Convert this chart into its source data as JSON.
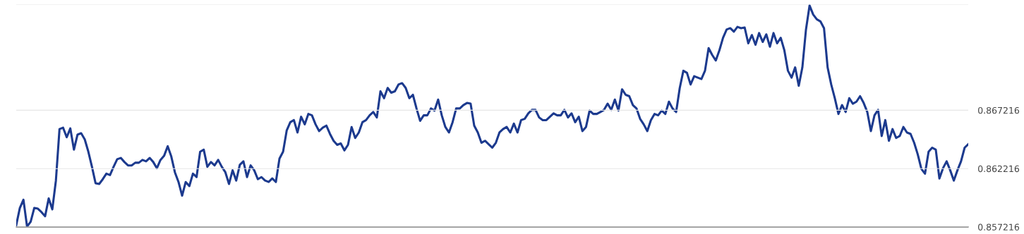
{
  "chart_data": {
    "type": "line",
    "categories": [
      null,
      null,
      null,
      null,
      null,
      null,
      null,
      null,
      null,
      null,
      null,
      null,
      null,
      null,
      null,
      null,
      null,
      null,
      null,
      null,
      null,
      null,
      null,
      null,
      null,
      null,
      null,
      null,
      null,
      null,
      null,
      null,
      null,
      null,
      null,
      null,
      null,
      null,
      null,
      null,
      null,
      null,
      null,
      null,
      null,
      null,
      null,
      null,
      null,
      null,
      null,
      null,
      null,
      null,
      null,
      null,
      null,
      null,
      null,
      null,
      null,
      null,
      null,
      null,
      null,
      null,
      null,
      null,
      null,
      null,
      null,
      null,
      null,
      null,
      null,
      null,
      null,
      null,
      null,
      null,
      null,
      null,
      null,
      null,
      null,
      null,
      null,
      null,
      null,
      null,
      null,
      null,
      null,
      null,
      null,
      null,
      null,
      null,
      null,
      null,
      null,
      null,
      null,
      null,
      null,
      null,
      null,
      null,
      null,
      null,
      null,
      null,
      null,
      null,
      null,
      null,
      null,
      null,
      null,
      null,
      null,
      null,
      null,
      null,
      null,
      null,
      null,
      null,
      null,
      null,
      null,
      null,
      null,
      null,
      null,
      null,
      null,
      null,
      null,
      null,
      null,
      null,
      null,
      null,
      null,
      null,
      null,
      null,
      null,
      null,
      null,
      null,
      null,
      null,
      null,
      null,
      null,
      null,
      null,
      null,
      null,
      null,
      null,
      null,
      null,
      null,
      null,
      null,
      null,
      null,
      null,
      null,
      null,
      null,
      null,
      null,
      null,
      null,
      null,
      null,
      null,
      null,
      null,
      null,
      null,
      null,
      null,
      null,
      null,
      null,
      null,
      null,
      null,
      null,
      null,
      null,
      null,
      null,
      null,
      null,
      null,
      null,
      null,
      null,
      null,
      null,
      null,
      null,
      null,
      null,
      null,
      null,
      null,
      null,
      null,
      null,
      null,
      null,
      null,
      null,
      null,
      null,
      null,
      null,
      null,
      null,
      null,
      null,
      null,
      null,
      null,
      null,
      null,
      null,
      null,
      null,
      null,
      null,
      null,
      null,
      null,
      null,
      null,
      null,
      null,
      null,
      null,
      null,
      null,
      null,
      null,
      null,
      null,
      null,
      null,
      null,
      null,
      null,
      null,
      null,
      null,
      null,
      null,
      null,
      null
    ],
    "series": [
      {
        "color": "#1c3a8e",
        "values": [
          0.85737,
          0.85884,
          0.85955,
          0.85725,
          0.85766,
          0.85884,
          0.85878,
          0.85849,
          0.85813,
          0.85966,
          0.85872,
          0.86119,
          0.8656,
          0.86572,
          0.8649,
          0.86566,
          0.86384,
          0.86513,
          0.86525,
          0.86472,
          0.86366,
          0.86237,
          0.86096,
          0.8609,
          0.86131,
          0.86178,
          0.86166,
          0.86237,
          0.86302,
          0.86313,
          0.86278,
          0.86249,
          0.86249,
          0.86272,
          0.86272,
          0.86296,
          0.86284,
          0.86313,
          0.86278,
          0.86225,
          0.86296,
          0.86331,
          0.86413,
          0.86325,
          0.8619,
          0.86107,
          0.8599,
          0.86107,
          0.86072,
          0.86178,
          0.86149,
          0.86366,
          0.86384,
          0.86237,
          0.86278,
          0.86249,
          0.86296,
          0.86237,
          0.8619,
          0.8609,
          0.86207,
          0.86119,
          0.86254,
          0.86284,
          0.86149,
          0.86249,
          0.86207,
          0.86131,
          0.86149,
          0.86119,
          0.86107,
          0.86137,
          0.86107,
          0.86307,
          0.86366,
          0.86548,
          0.86619,
          0.86637,
          0.86531,
          0.86666,
          0.86601,
          0.8669,
          0.86678,
          0.86601,
          0.86543,
          0.86572,
          0.8659,
          0.86519,
          0.8646,
          0.86425,
          0.86437,
          0.86378,
          0.86425,
          0.86578,
          0.86484,
          0.86531,
          0.86619,
          0.86637,
          0.86678,
          0.86707,
          0.8666,
          0.86884,
          0.86825,
          0.86913,
          0.86872,
          0.86884,
          0.86942,
          0.86954,
          0.86913,
          0.86825,
          0.86854,
          0.86737,
          0.86631,
          0.86678,
          0.86678,
          0.86737,
          0.86719,
          0.86813,
          0.86678,
          0.86578,
          0.86531,
          0.86619,
          0.86737,
          0.86737,
          0.86766,
          0.86784,
          0.86778,
          0.8659,
          0.86531,
          0.86443,
          0.8646,
          0.86431,
          0.86401,
          0.86443,
          0.86531,
          0.8656,
          0.86578,
          0.86531,
          0.86607,
          0.86531,
          0.86637,
          0.86648,
          0.86695,
          0.86725,
          0.86725,
          0.8666,
          0.86637,
          0.86637,
          0.86666,
          0.86695,
          0.86678,
          0.86678,
          0.86725,
          0.8666,
          0.86695,
          0.86619,
          0.86666,
          0.86543,
          0.86578,
          0.86719,
          0.8669,
          0.8669,
          0.86707,
          0.86725,
          0.86778,
          0.86725,
          0.86813,
          0.86719,
          0.86901,
          0.86854,
          0.86842,
          0.86766,
          0.86737,
          0.86648,
          0.86601,
          0.86543,
          0.86637,
          0.8669,
          0.86678,
          0.86719,
          0.8669,
          0.86795,
          0.86737,
          0.86707,
          0.86913,
          0.8706,
          0.87042,
          0.86942,
          0.87013,
          0.87001,
          0.86989,
          0.8706,
          0.87254,
          0.87195,
          0.87148,
          0.87236,
          0.87342,
          0.87413,
          0.87425,
          0.87395,
          0.87436,
          0.87425,
          0.8743,
          0.87295,
          0.87366,
          0.87283,
          0.87383,
          0.87307,
          0.87372,
          0.87266,
          0.87383,
          0.87295,
          0.87342,
          0.87236,
          0.8706,
          0.87001,
          0.87089,
          0.86931,
          0.87089,
          0.87413,
          0.87619,
          0.87542,
          0.87501,
          0.87483,
          0.87425,
          0.87089,
          0.86942,
          0.86825,
          0.8669,
          0.86766,
          0.86707,
          0.86825,
          0.86778,
          0.86795,
          0.86842,
          0.86784,
          0.86707,
          0.86543,
          0.86678,
          0.86725,
          0.86501,
          0.86637,
          0.8646,
          0.8656,
          0.86484,
          0.86501,
          0.86578,
          0.86531,
          0.86519,
          0.86443,
          0.86343,
          0.86219,
          0.86178,
          0.86366,
          0.86401,
          0.86384,
          0.86137,
          0.86225,
          0.86284,
          0.86207,
          0.86119,
          0.86207,
          0.86284,
          0.86401,
          0.86431
        ]
      }
    ],
    "ylim": [
      0.857216,
      0.8763
    ],
    "yticks": [
      0.857216,
      0.862216,
      0.867216,
      {
        "value": 0.8763,
        "label": null
      }
    ],
    "grid": "y",
    "tick_labels": "y",
    "marker": "none",
    "line_style": "solid"
  }
}
